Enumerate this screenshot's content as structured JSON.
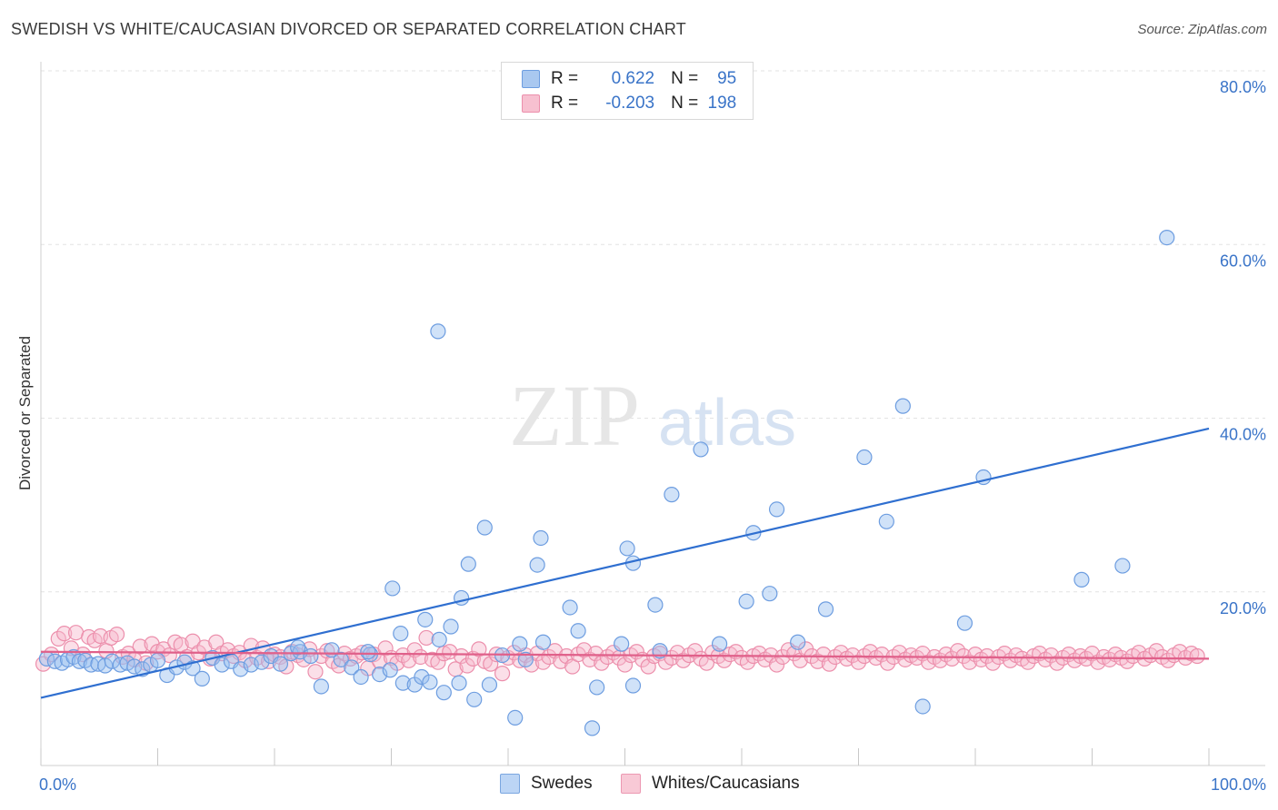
{
  "title": "SWEDISH VS WHITE/CAUCASIAN DIVORCED OR SEPARATED CORRELATION CHART",
  "source": "Source: ZipAtlas.com",
  "watermark": {
    "zip": "ZIP",
    "atlas": "atlas"
  },
  "legend": {
    "rows": [
      {
        "r_label": "R =",
        "r_value": "0.622",
        "n_label": "N =",
        "n_value": "95",
        "color": "#a9c8f0",
        "border": "#6d9de0"
      },
      {
        "r_label": "R =",
        "r_value": "-0.203",
        "n_label": "N =",
        "n_value": "198",
        "color": "#f7c0d0",
        "border": "#ec8fac"
      }
    ]
  },
  "bottom_legend": [
    {
      "label": "Swedes",
      "color": "#bcd5f5",
      "border": "#7aa6e0"
    },
    {
      "label": "Whites/Caucasians",
      "color": "#f8c9d6",
      "border": "#ec98b2"
    }
  ],
  "chart_data": {
    "type": "scatter",
    "title": "SWEDISH VS WHITE/CAUCASIAN DIVORCED OR SEPARATED CORRELATION CHART",
    "xlabel": "",
    "ylabel": "Divorced or Separated",
    "xlim": [
      0,
      100
    ],
    "ylim": [
      0,
      80
    ],
    "x_ticks": [
      {
        "value": 0,
        "label": "0.0%"
      },
      {
        "value": 100,
        "label": "100.0%"
      }
    ],
    "y_ticks": [
      {
        "value": 20,
        "label": "20.0%"
      },
      {
        "value": 40,
        "label": "40.0%"
      },
      {
        "value": 60,
        "label": "60.0%"
      },
      {
        "value": 80,
        "label": "80.0%"
      }
    ],
    "grid": true,
    "legend_position": "top-center",
    "series": [
      {
        "name": "Swedes",
        "color": "#6d9de0",
        "fill": "rgba(150,190,240,0.45)",
        "trend": {
          "x0": 0,
          "y0": 7.8,
          "x1": 100,
          "y1": 38.8,
          "color": "#2f6fd0"
        },
        "points": [
          [
            0.5,
            12.3
          ],
          [
            1.2,
            12.0
          ],
          [
            1.8,
            11.8
          ],
          [
            2.3,
            12.2
          ],
          [
            2.8,
            12.5
          ],
          [
            3.3,
            12.0
          ],
          [
            3.8,
            12.1
          ],
          [
            4.3,
            11.6
          ],
          [
            4.9,
            11.7
          ],
          [
            5.5,
            11.5
          ],
          [
            6.1,
            12.0
          ],
          [
            6.8,
            11.6
          ],
          [
            7.4,
            11.8
          ],
          [
            8.0,
            11.4
          ],
          [
            8.7,
            11.1
          ],
          [
            9.4,
            11.6
          ],
          [
            10.0,
            12.1
          ],
          [
            10.8,
            10.4
          ],
          [
            11.6,
            11.3
          ],
          [
            12.3,
            11.9
          ],
          [
            13.0,
            11.2
          ],
          [
            13.8,
            10.0
          ],
          [
            14.7,
            12.4
          ],
          [
            15.5,
            11.6
          ],
          [
            16.3,
            12.0
          ],
          [
            17.1,
            11.1
          ],
          [
            18.0,
            11.6
          ],
          [
            18.9,
            11.9
          ],
          [
            19.7,
            12.6
          ],
          [
            20.5,
            11.7
          ],
          [
            21.4,
            12.9
          ],
          [
            22.2,
            13.1
          ],
          [
            23.1,
            12.6
          ],
          [
            24.0,
            9.1
          ],
          [
            24.9,
            13.3
          ],
          [
            25.7,
            12.2
          ],
          [
            26.6,
            11.3
          ],
          [
            27.4,
            10.2
          ],
          [
            28.2,
            12.8
          ],
          [
            29.0,
            10.5
          ],
          [
            29.9,
            11.0
          ],
          [
            31.0,
            9.5
          ],
          [
            32.0,
            9.3
          ],
          [
            32.6,
            10.2
          ],
          [
            33.3,
            9.6
          ],
          [
            34.5,
            8.4
          ],
          [
            35.8,
            9.5
          ],
          [
            37.1,
            7.6
          ],
          [
            38.4,
            9.3
          ],
          [
            39.5,
            12.7
          ],
          [
            40.6,
            5.5
          ],
          [
            41.5,
            12.2
          ],
          [
            43.0,
            14.2
          ],
          [
            46.0,
            15.5
          ],
          [
            47.2,
            4.3
          ],
          [
            47.6,
            9.0
          ],
          [
            49.7,
            14.0
          ],
          [
            50.7,
            9.2
          ],
          [
            22.0,
            13.6
          ],
          [
            28.0,
            13.1
          ],
          [
            30.1,
            20.4
          ],
          [
            30.8,
            15.2
          ],
          [
            32.9,
            16.8
          ],
          [
            34.1,
            14.5
          ],
          [
            35.1,
            16.0
          ],
          [
            36.0,
            19.3
          ],
          [
            36.6,
            23.2
          ],
          [
            38.0,
            27.4
          ],
          [
            42.5,
            23.1
          ],
          [
            42.8,
            26.2
          ],
          [
            45.3,
            18.2
          ],
          [
            50.2,
            25.0
          ],
          [
            50.7,
            23.3
          ],
          [
            52.6,
            18.5
          ],
          [
            54.0,
            31.2
          ],
          [
            56.5,
            36.4
          ],
          [
            58.1,
            14.0
          ],
          [
            60.4,
            18.9
          ],
          [
            61.0,
            26.8
          ],
          [
            62.4,
            19.8
          ],
          [
            63.0,
            29.5
          ],
          [
            64.8,
            14.2
          ],
          [
            67.2,
            18.0
          ],
          [
            70.5,
            35.5
          ],
          [
            72.4,
            28.1
          ],
          [
            73.8,
            41.4
          ],
          [
            75.5,
            6.8
          ],
          [
            79.1,
            16.4
          ],
          [
            80.7,
            33.2
          ],
          [
            89.1,
            21.4
          ],
          [
            92.6,
            23.0
          ],
          [
            53.0,
            13.2
          ],
          [
            41.0,
            14.0
          ],
          [
            34.0,
            50.0
          ],
          [
            96.4,
            60.8
          ]
        ]
      },
      {
        "name": "Whites/Caucasians",
        "color": "#ec8fac",
        "fill": "rgba(247,185,205,0.45)",
        "trend": {
          "x0": 0,
          "y0": 13.1,
          "x1": 100,
          "y1": 12.3,
          "color": "#e0608a"
        },
        "points": [
          [
            0.2,
            11.7
          ],
          [
            0.9,
            12.8
          ],
          [
            1.5,
            14.6
          ],
          [
            2.0,
            15.2
          ],
          [
            2.6,
            13.5
          ],
          [
            3.0,
            15.3
          ],
          [
            3.6,
            12.8
          ],
          [
            4.1,
            14.8
          ],
          [
            4.6,
            14.4
          ],
          [
            5.1,
            14.9
          ],
          [
            5.6,
            13.2
          ],
          [
            6.0,
            14.7
          ],
          [
            6.5,
            15.1
          ],
          [
            7.0,
            12.5
          ],
          [
            7.5,
            12.9
          ],
          [
            8.0,
            12.2
          ],
          [
            8.5,
            13.7
          ],
          [
            9.0,
            11.8
          ],
          [
            9.5,
            14.0
          ],
          [
            10.0,
            13.1
          ],
          [
            10.5,
            13.4
          ],
          [
            11.0,
            12.7
          ],
          [
            11.5,
            14.2
          ],
          [
            12.0,
            13.9
          ],
          [
            12.5,
            12.5
          ],
          [
            13.0,
            14.3
          ],
          [
            13.5,
            13.0
          ],
          [
            14.0,
            13.6
          ],
          [
            14.5,
            12.3
          ],
          [
            15.0,
            14.2
          ],
          [
            15.5,
            12.9
          ],
          [
            16.0,
            13.3
          ],
          [
            16.5,
            12.6
          ],
          [
            17.0,
            13.0
          ],
          [
            17.5,
            12.1
          ],
          [
            18.0,
            13.8
          ],
          [
            18.5,
            12.4
          ],
          [
            19.0,
            13.5
          ],
          [
            19.5,
            12.0
          ],
          [
            20.0,
            12.8
          ],
          [
            20.5,
            12.5
          ],
          [
            21.0,
            11.4
          ],
          [
            21.5,
            13.1
          ],
          [
            22.0,
            12.7
          ],
          [
            22.5,
            12.2
          ],
          [
            23.0,
            13.4
          ],
          [
            23.5,
            10.8
          ],
          [
            24.0,
            12.6
          ],
          [
            24.5,
            13.2
          ],
          [
            25.0,
            12.0
          ],
          [
            25.5,
            11.5
          ],
          [
            26.0,
            12.9
          ],
          [
            26.5,
            12.3
          ],
          [
            27.0,
            12.6
          ],
          [
            27.5,
            13.0
          ],
          [
            28.0,
            11.2
          ],
          [
            28.5,
            12.8
          ],
          [
            29.0,
            12.0
          ],
          [
            29.5,
            13.5
          ],
          [
            30.0,
            12.4
          ],
          [
            30.5,
            11.8
          ],
          [
            31.0,
            12.7
          ],
          [
            31.5,
            12.1
          ],
          [
            32.0,
            13.3
          ],
          [
            32.5,
            12.5
          ],
          [
            33.0,
            14.7
          ],
          [
            33.5,
            12.2
          ],
          [
            34.0,
            11.9
          ],
          [
            34.5,
            12.9
          ],
          [
            35.0,
            13.1
          ],
          [
            35.5,
            11.1
          ],
          [
            36.0,
            12.6
          ],
          [
            36.5,
            11.5
          ],
          [
            37.0,
            12.3
          ],
          [
            37.5,
            13.4
          ],
          [
            38.0,
            12.0
          ],
          [
            38.5,
            11.7
          ],
          [
            39.0,
            12.8
          ],
          [
            39.5,
            10.6
          ],
          [
            40.0,
            12.4
          ],
          [
            40.5,
            13.0
          ],
          [
            41.0,
            12.1
          ],
          [
            41.5,
            12.7
          ],
          [
            42.0,
            11.6
          ],
          [
            42.5,
            12.9
          ],
          [
            43.0,
            11.9
          ],
          [
            43.5,
            12.5
          ],
          [
            44.0,
            13.2
          ],
          [
            44.5,
            12.0
          ],
          [
            45.0,
            12.6
          ],
          [
            45.5,
            11.4
          ],
          [
            46.0,
            12.8
          ],
          [
            46.5,
            13.3
          ],
          [
            47.0,
            12.2
          ],
          [
            47.5,
            12.9
          ],
          [
            48.0,
            11.8
          ],
          [
            48.5,
            12.5
          ],
          [
            49.0,
            13.0
          ],
          [
            49.5,
            12.4
          ],
          [
            50.0,
            11.6
          ],
          [
            50.5,
            12.7
          ],
          [
            51.0,
            13.1
          ],
          [
            51.5,
            12.2
          ],
          [
            52.0,
            11.4
          ],
          [
            52.5,
            12.6
          ],
          [
            53.0,
            12.9
          ],
          [
            53.5,
            11.9
          ],
          [
            54.0,
            12.4
          ],
          [
            54.5,
            13.0
          ],
          [
            55.0,
            12.1
          ],
          [
            55.5,
            12.7
          ],
          [
            56.0,
            13.2
          ],
          [
            56.5,
            12.3
          ],
          [
            57.0,
            11.8
          ],
          [
            57.5,
            13.0
          ],
          [
            58.0,
            12.6
          ],
          [
            58.5,
            12.1
          ],
          [
            59.0,
            12.8
          ],
          [
            59.5,
            13.1
          ],
          [
            60.0,
            12.4
          ],
          [
            60.5,
            11.9
          ],
          [
            61.0,
            12.6
          ],
          [
            61.5,
            12.9
          ],
          [
            62.0,
            12.2
          ],
          [
            62.5,
            12.7
          ],
          [
            63.0,
            11.6
          ],
          [
            63.5,
            12.5
          ],
          [
            64.0,
            13.3
          ],
          [
            64.5,
            12.9
          ],
          [
            65.0,
            12.1
          ],
          [
            65.5,
            13.4
          ],
          [
            66.0,
            12.6
          ],
          [
            66.5,
            12.0
          ],
          [
            67.0,
            12.8
          ],
          [
            67.5,
            11.7
          ],
          [
            68.0,
            12.5
          ],
          [
            68.5,
            13.0
          ],
          [
            69.0,
            12.3
          ],
          [
            69.5,
            12.7
          ],
          [
            70.0,
            11.9
          ],
          [
            70.5,
            12.6
          ],
          [
            71.0,
            13.1
          ],
          [
            71.5,
            12.4
          ],
          [
            72.0,
            12.8
          ],
          [
            72.5,
            11.8
          ],
          [
            73.0,
            12.5
          ],
          [
            73.5,
            13.0
          ],
          [
            74.0,
            12.2
          ],
          [
            74.5,
            12.7
          ],
          [
            75.0,
            12.4
          ],
          [
            75.5,
            12.9
          ],
          [
            76.0,
            11.9
          ],
          [
            76.5,
            12.5
          ],
          [
            77.0,
            12.1
          ],
          [
            77.5,
            12.8
          ],
          [
            78.0,
            12.3
          ],
          [
            78.5,
            13.2
          ],
          [
            79.0,
            12.6
          ],
          [
            79.5,
            11.9
          ],
          [
            80.0,
            12.8
          ],
          [
            80.5,
            12.2
          ],
          [
            81.0,
            12.6
          ],
          [
            81.5,
            11.8
          ],
          [
            82.0,
            12.5
          ],
          [
            82.5,
            12.9
          ],
          [
            83.0,
            12.1
          ],
          [
            83.5,
            12.7
          ],
          [
            84.0,
            12.3
          ],
          [
            84.5,
            11.9
          ],
          [
            85.0,
            12.6
          ],
          [
            85.5,
            12.9
          ],
          [
            86.0,
            12.2
          ],
          [
            86.5,
            12.7
          ],
          [
            87.0,
            11.8
          ],
          [
            87.5,
            12.4
          ],
          [
            88.0,
            12.8
          ],
          [
            88.5,
            12.1
          ],
          [
            89.0,
            12.6
          ],
          [
            89.5,
            12.3
          ],
          [
            90.0,
            12.9
          ],
          [
            90.5,
            11.9
          ],
          [
            91.0,
            12.5
          ],
          [
            91.5,
            12.2
          ],
          [
            92.0,
            12.8
          ],
          [
            92.5,
            12.4
          ],
          [
            93.0,
            12.0
          ],
          [
            93.5,
            12.6
          ],
          [
            94.0,
            13.0
          ],
          [
            94.5,
            12.3
          ],
          [
            95.0,
            12.7
          ],
          [
            95.5,
            13.2
          ],
          [
            96.0,
            12.5
          ],
          [
            96.5,
            12.1
          ],
          [
            97.0,
            12.7
          ],
          [
            97.5,
            13.1
          ],
          [
            98.0,
            12.4
          ],
          [
            98.5,
            12.9
          ],
          [
            99.0,
            12.6
          ]
        ]
      }
    ]
  }
}
